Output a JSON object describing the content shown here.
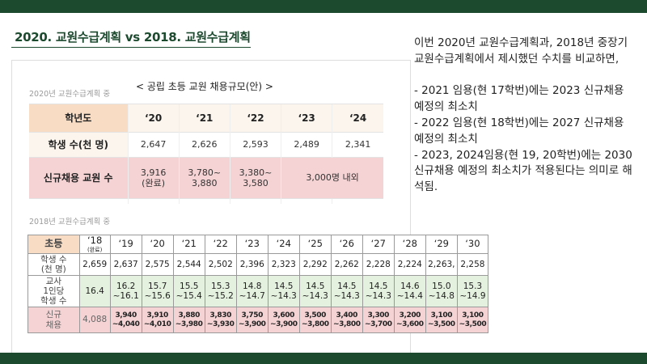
{
  "header": {
    "title": "2020. 교원수급계획 vs 2018. 교원수급계획"
  },
  "table2020": {
    "caption": "2020년 교원수급계획 중",
    "title": "< 공립 초등 교원 채용규모(안) >",
    "header_label": "학년도",
    "years": [
      "‘20",
      "‘21",
      "‘22",
      "‘23",
      "‘24"
    ],
    "students_label": "학생 수(천 명)",
    "students": [
      "2,647",
      "2,626",
      "2,593",
      "2,489",
      "2,341"
    ],
    "hires_label": "신규채용 교원 수",
    "hires": [
      "3,916\n(완료)",
      "3,780~\n3,880",
      "3,380~\n3,580"
    ],
    "hires_merged": "3,000명 내외"
  },
  "table2018": {
    "caption": "2018년 교원수급계획 중",
    "header_label": "초등",
    "years": [
      "‘18",
      "‘19",
      "‘20",
      "‘21",
      "‘22",
      "‘23",
      "‘24",
      "‘25",
      "‘26",
      "‘27",
      "‘28",
      "‘29",
      "‘30"
    ],
    "first_year_note": "(완료)",
    "students_label": "학생 수\n(천 명)",
    "students": [
      "2,659",
      "2,637",
      "2,575",
      "2,544",
      "2,502",
      "2,396",
      "2,323",
      "2,292",
      "2,262",
      "2,228",
      "2,224",
      "2,263,",
      "2,258"
    ],
    "ratio_label": "교사\n1인당\n학생 수",
    "ratio": [
      "16.4",
      "16.2\n~16.1",
      "15.7\n~15.6",
      "15.5\n~15.4",
      "15.3\n~15.2",
      "14.8\n~14.7",
      "14.5\n~14.3",
      "14.5\n~14.3",
      "14.5\n~14.3",
      "14.5\n~14.3",
      "14.6\n~14.4",
      "15.0\n~14.8",
      "15.3\n~14.9"
    ],
    "hires_label": "신규\n채용",
    "hires": [
      "4,088",
      "3,940\n~4,040",
      "3,910\n~4,010",
      "3,880\n~3,980",
      "3,830\n~3,930",
      "3,750\n~3,900",
      "3,600\n~3,900",
      "3,500\n~3,800",
      "3,400\n~3,800",
      "3,300\n~3,700",
      "3,200\n~3,600",
      "3,100\n~3,500",
      "3,100\n~3,500"
    ]
  },
  "sidebar": {
    "intro": "이번 2020년 교원수급계획과, 2018년 중장기 교원수급계획에서 제시했던 수치를 비교하면,",
    "bullets": [
      "- 2021 임용(현 17학번)에는 2023 신규채용 예정의 최소치",
      "- 2022 임용(현 18학번)에는 2027 신규채용 예정의 최소치",
      "- 2023, 2024임용(현 19, 20학번)에는 2030 신규채용 예정의 최소치가 적용된다는 의미로 해석됨."
    ]
  }
}
